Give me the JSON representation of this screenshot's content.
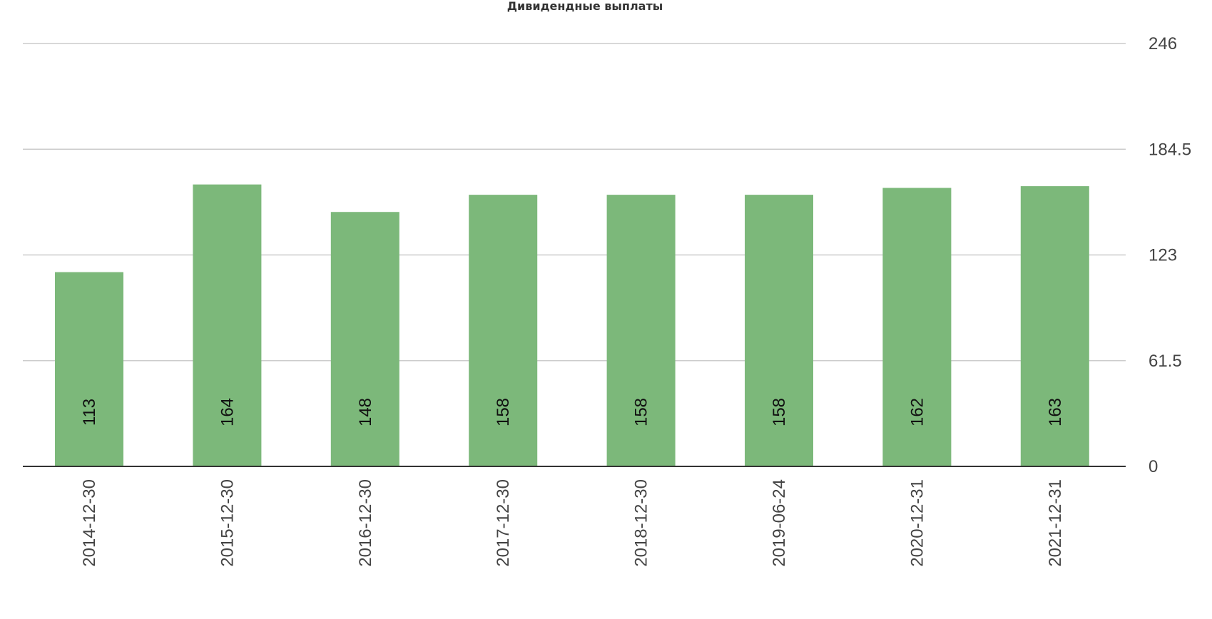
{
  "chart_data": {
    "type": "bar",
    "title": "Дивидендные выплаты",
    "categories": [
      "2014-12-30",
      "2015-12-30",
      "2016-12-30",
      "2017-12-30",
      "2018-12-30",
      "2019-06-24",
      "2020-12-31",
      "2021-12-31"
    ],
    "values": [
      113,
      164,
      148,
      158,
      158,
      158,
      162,
      163
    ],
    "data_labels": [
      "113",
      "164",
      "148",
      "158",
      "158",
      "158",
      "162",
      "163"
    ],
    "yticks": [
      0,
      61.5,
      123,
      184.5,
      246
    ],
    "ytick_labels": [
      "0",
      "61.5",
      "123",
      "184.5",
      "246"
    ],
    "ylim": [
      0,
      246
    ],
    "y_axis_position": "right",
    "grid": true,
    "bar_color": "#7cb87a"
  }
}
